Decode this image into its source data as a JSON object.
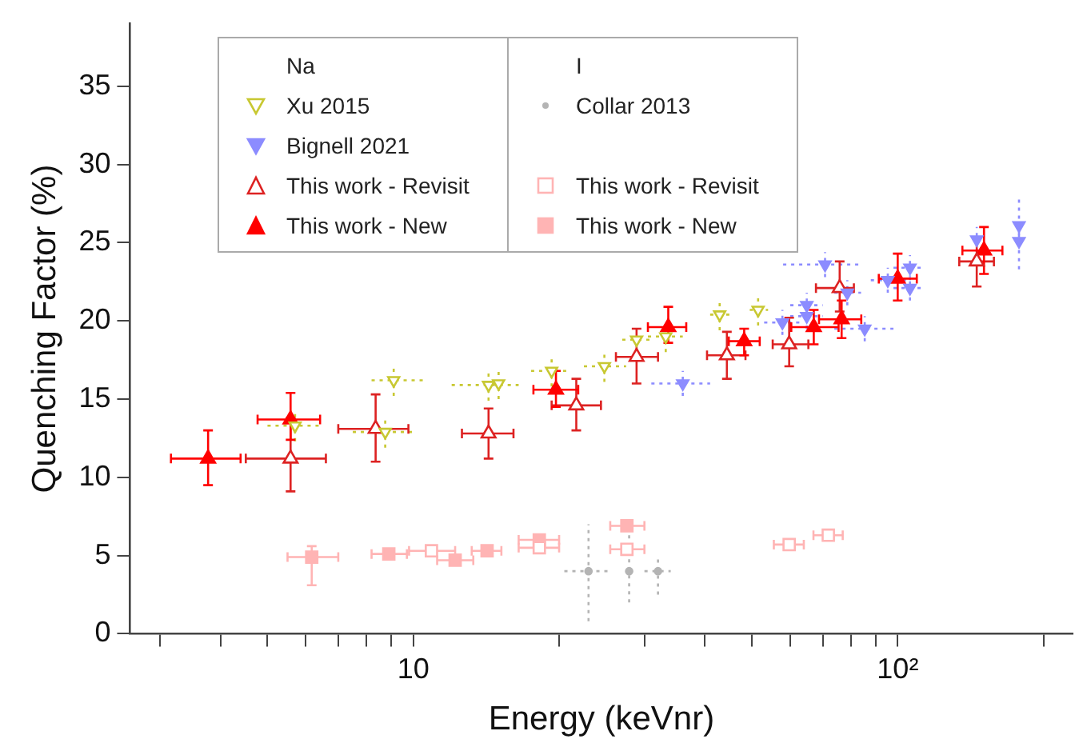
{
  "chart_data": {
    "type": "scatter",
    "xlabel": "Energy (keVnr)",
    "ylabel": "Quenching Factor (%)",
    "annotations": [
      "Na",
      "I"
    ],
    "log": "x",
    "grid": false,
    "legend": "top left",
    "xlim": [
      2.6,
      230
    ],
    "ylim": [
      0,
      39
    ],
    "xticks": [
      {
        "value": 3,
        "label": null
      },
      {
        "value": 4,
        "label": null
      },
      {
        "value": 5,
        "label": null
      },
      {
        "value": 6,
        "label": null
      },
      {
        "value": 7,
        "label": null
      },
      {
        "value": 8,
        "label": null
      },
      {
        "value": 9,
        "label": null
      },
      10,
      {
        "value": 20,
        "label": null
      },
      {
        "value": 30,
        "label": null
      },
      {
        "value": 40,
        "label": null
      },
      {
        "value": 50,
        "label": null
      },
      {
        "value": 60,
        "label": null
      },
      {
        "value": 70,
        "label": null
      },
      {
        "value": 80,
        "label": null
      },
      {
        "value": 90,
        "label": null
      },
      {
        "value": 100,
        "label": "10²"
      },
      {
        "value": 200,
        "label": null
      }
    ],
    "yticks": [
      0,
      5,
      10,
      15,
      20,
      25,
      30,
      35
    ],
    "series": [
      {
        "name": "Xu 2015",
        "color": "#c8c832",
        "marker": "triangle",
        "line_style": "dotted",
        "x": [
          5.7,
          8.75,
          9.11,
          14.3,
          15.0,
          19.3,
          24.8,
          28.9,
          33.2,
          42.9,
          51.5
        ],
        "values": [
          13.3,
          12.9,
          16.2,
          15.9,
          16.0,
          16.8,
          17.1,
          18.8,
          19.0,
          20.4,
          20.7
        ],
        "errors": [
          1.0,
          1.0,
          1.0,
          1.0,
          1.0,
          1.0,
          1.0,
          null,
          1.0,
          1.0,
          1.0
        ],
        "xerrors": [
          [
            5.0,
            6.5
          ],
          [
            7.5,
            10.0
          ],
          [
            8.2,
            10.5
          ],
          [
            12.0,
            16.5
          ],
          null,
          [
            17.5,
            21.0
          ],
          [
            22.5,
            27.5
          ],
          [
            27.0,
            31.0
          ],
          [
            30.5,
            36.0
          ],
          [
            41.0,
            45.0
          ],
          [
            49.5,
            54.0
          ]
        ]
      },
      {
        "name": "Bignell 2021",
        "color": "#8c8cff",
        "marker": "triangle",
        "line_style": "dotted",
        "x": [
          36.0,
          57.8,
          64.9,
          64.9,
          70.8,
          78.7,
          85.5,
          95.4,
          106,
          106,
          145.6,
          178,
          178
        ],
        "values": [
          16.0,
          19.9,
          21.0,
          20.3,
          23.6,
          21.8,
          19.5,
          22.6,
          23.4,
          22.1,
          25.2,
          26.1,
          25.1
        ],
        "errors": [
          0.8,
          0.8,
          0.8,
          0.8,
          0.8,
          0.8,
          0.8,
          0.8,
          0.8,
          0.8,
          0.8,
          [
            25.0,
            27.8
          ],
          [
            23.3,
            26.2
          ]
        ],
        "xerrors": [
          [
            31,
            41
          ],
          [
            53,
            63
          ],
          [
            60,
            70
          ],
          [
            60,
            70
          ],
          [
            58,
            84
          ],
          [
            74,
            84
          ],
          [
            74,
            98
          ],
          [
            88,
            104
          ],
          [
            98,
            114
          ],
          [
            98,
            114
          ],
          null,
          null,
          null
        ]
      },
      {
        "name": "This work - Revisit",
        "color": "#dd2222",
        "marker": "triangle",
        "line_style": "solid",
        "x": [
          5.58,
          8.36,
          14.3,
          21.7,
          28.9,
          44.4,
          59.7,
          75.9,
          145.6
        ],
        "values": [
          11.2,
          13.1,
          12.8,
          14.6,
          17.7,
          17.8,
          18.5,
          22.1,
          23.8
        ],
        "errors": [
          [
            9.1,
            13.8
          ],
          [
            11.0,
            15.3
          ],
          [
            11.2,
            14.4
          ],
          [
            13.0,
            16.3
          ],
          [
            16.0,
            19.5
          ],
          [
            16.3,
            19.3
          ],
          [
            17.1,
            20.2
          ],
          [
            20.6,
            23.8
          ],
          [
            22.2,
            25.3
          ]
        ],
        "xerrors": [
          [
            4.51,
            6.6
          ],
          [
            7.0,
            9.77
          ],
          [
            12.6,
            16.1
          ],
          [
            19.3,
            24.4
          ],
          [
            26.2,
            32.0
          ],
          [
            40.4,
            48.5
          ],
          [
            55.2,
            65.4
          ],
          [
            67.8,
            81.2
          ],
          [
            134,
            158
          ]
        ]
      },
      {
        "name": "This work - New",
        "color": "#ff0000",
        "marker": "triangle",
        "line_style": "solid",
        "x": [
          3.77,
          5.58,
          19.7,
          33.6,
          48.2,
          67.1,
          76.6,
          100,
          150.7
        ],
        "values": [
          11.2,
          13.7,
          15.6,
          19.6,
          18.7,
          19.6,
          20.1,
          22.7,
          24.5
        ],
        "errors": [
          [
            9.5,
            13.0
          ],
          [
            12.4,
            15.4
          ],
          [
            14.5,
            16.8
          ],
          [
            18.6,
            20.9
          ],
          [
            17.8,
            19.5
          ],
          [
            18.5,
            20.7
          ],
          [
            18.9,
            21.3
          ],
          [
            21.3,
            24.3
          ],
          [
            23.0,
            26.0
          ]
        ],
        "xerrors": [
          [
            3.16,
            4.4
          ],
          [
            4.77,
            6.42
          ],
          [
            17.7,
            21.9
          ],
          [
            30.5,
            36.6
          ],
          [
            44.8,
            51.9
          ],
          [
            60.3,
            75.5
          ],
          [
            68.8,
            84.1
          ],
          [
            91.4,
            109.5
          ],
          [
            136,
            164.5
          ]
        ]
      },
      {
        "name": "Collar 2013",
        "color": "#b4b4b4",
        "marker": "circle",
        "line_style": "dotted",
        "x": [
          23.0,
          27.9,
          32.0
        ],
        "values": [
          4.0,
          4.0,
          4.0
        ],
        "errors": [
          [
            0.8,
            7.0
          ],
          [
            2.0,
            6.5
          ],
          [
            2.5,
            5.0
          ]
        ],
        "xerrors": [
          [
            20.5,
            25.5
          ],
          null,
          [
            30.0,
            34.0
          ]
        ]
      },
      {
        "name": "This work - Revisit",
        "color": "#ffb4b4",
        "marker": "square",
        "line_style": "solid",
        "x": [
          10.9,
          18.2,
          27.6,
          59.7,
          71.9
        ],
        "values": [
          5.3,
          5.5,
          5.4,
          5.7,
          6.3
        ],
        "xerrors": [
          [
            9.8,
            12.2
          ],
          [
            16.5,
            20.0
          ],
          [
            25.5,
            30.0
          ],
          [
            55.5,
            64.0
          ],
          [
            67.0,
            77.0
          ]
        ]
      },
      {
        "name": "This work - New",
        "color": "#ffb4b4",
        "marker": "square",
        "line_style": "solid",
        "x": [
          6.17,
          8.9,
          12.2,
          14.2,
          18.2,
          27.6
        ],
        "values": [
          4.9,
          5.1,
          4.7,
          5.3,
          6.0,
          6.9
        ],
        "errors": [
          [
            3.1,
            5.6
          ],
          null,
          null,
          null,
          null,
          null
        ],
        "xerrors": [
          [
            5.5,
            7.0
          ],
          [
            8.2,
            9.7
          ],
          [
            11.2,
            13.3
          ],
          [
            13.2,
            15.2
          ],
          [
            16.5,
            20.0
          ],
          [
            25.5,
            30.0
          ]
        ]
      }
    ]
  }
}
